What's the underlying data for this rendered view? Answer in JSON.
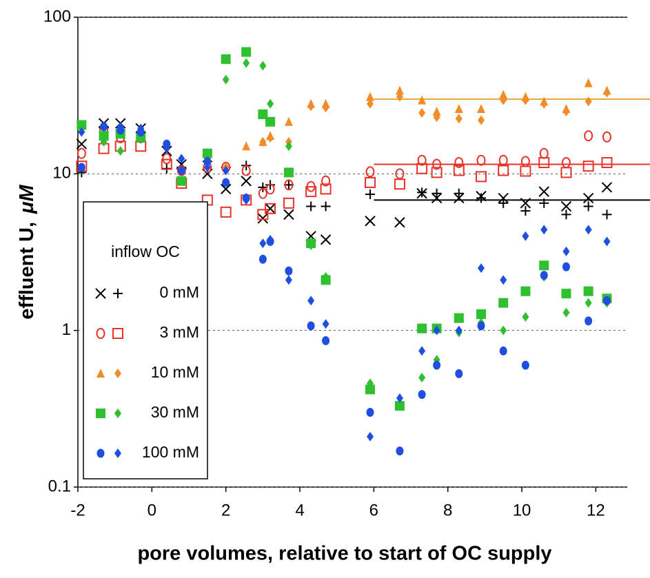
{
  "chart_data": {
    "type": "scatter",
    "xlabel": "pore volumes, relative to start of OC supply",
    "ylabel": "effluent U,",
    "ylabel_unit": "μM",
    "xlim": [
      -2,
      12.85
    ],
    "xticks": [
      -2,
      0,
      2,
      4,
      6,
      8,
      10,
      12
    ],
    "ylim": [
      0.1,
      100
    ],
    "yticks": [
      0.1,
      1,
      10,
      100
    ],
    "log_y": true,
    "grid": true,
    "legend": {
      "title": "inflow OC",
      "corner": "lower-left",
      "entries": [
        {
          "label": "0 mM",
          "series": [
            0,
            1
          ]
        },
        {
          "label": "3 mM",
          "series": [
            2,
            3
          ]
        },
        {
          "label": "10 mM",
          "series": [
            4,
            5
          ]
        },
        {
          "label": "30 mM",
          "series": [
            6,
            7
          ]
        },
        {
          "label": "100 mM",
          "series": [
            8,
            9
          ]
        }
      ]
    },
    "reference_lines": [
      {
        "value": 30,
        "x_start": 6,
        "color": "#e8a33c"
      },
      {
        "value": 11.5,
        "x_start": 6,
        "color": "#e8322a"
      },
      {
        "value": 6.8,
        "x_start": 6,
        "color": "#000000"
      }
    ],
    "series": [
      {
        "marker": "x",
        "color": "#000000",
        "x": [
          -1.9,
          -1.3,
          -0.85,
          -0.3,
          0.4,
          0.8,
          1.5,
          2.0,
          2.55,
          3.0,
          3.2,
          3.7,
          4.3,
          4.7,
          5.9,
          6.7,
          7.3,
          7.7,
          8.3,
          8.9,
          9.5,
          10.1,
          10.6,
          11.2,
          11.8,
          12.3
        ],
        "values": [
          15.5,
          21,
          21,
          19.5,
          14,
          11.5,
          10,
          8,
          9,
          5.2,
          6,
          5.5,
          4,
          3.8,
          5,
          4.9,
          7.5,
          7,
          7,
          7.2,
          7,
          6.5,
          7.7,
          6.2,
          7,
          8.2
        ]
      },
      {
        "marker": "plus",
        "color": "#000000",
        "x": [
          -1.9,
          -1.3,
          -0.85,
          -0.3,
          0.4,
          0.8,
          1.5,
          2.0,
          2.55,
          3.0,
          3.2,
          3.7,
          4.3,
          4.7,
          5.9,
          7.3,
          7.7,
          8.3,
          8.9,
          9.5,
          10.1,
          10.6,
          11.2,
          11.8,
          12.3
        ],
        "values": [
          10.2,
          20,
          19,
          18.5,
          10.8,
          11,
          12,
          11,
          11.3,
          8.2,
          8.5,
          8.5,
          6.2,
          6.2,
          7.4,
          7.6,
          7.5,
          7.5,
          7,
          6.5,
          5.8,
          6.5,
          5.5,
          6.2,
          5.5
        ]
      },
      {
        "marker": "circle-open",
        "color": "#e8322a",
        "x": [
          -1.9,
          -1.3,
          -0.85,
          -0.3,
          0.4,
          0.8,
          1.5,
          2.0,
          2.55,
          3.0,
          3.2,
          3.7,
          4.3,
          4.7,
          5.9,
          6.7,
          7.3,
          7.7,
          8.3,
          8.9,
          9.5,
          10.1,
          10.6,
          11.2,
          11.8,
          12.3
        ],
        "values": [
          13.5,
          19,
          17,
          17,
          12.5,
          10.5,
          11,
          11,
          10.5,
          7.5,
          8,
          8.5,
          8.3,
          9,
          10.3,
          10,
          12.2,
          11.5,
          11.8,
          12.2,
          12.2,
          12,
          13.5,
          11.8,
          17.5,
          17.2
        ]
      },
      {
        "marker": "square-open",
        "color": "#e8322a",
        "x": [
          -1.9,
          -1.3,
          -0.85,
          -0.3,
          0.4,
          0.8,
          1.5,
          2.0,
          2.55,
          3.0,
          3.2,
          3.7,
          4.3,
          4.7,
          5.9,
          6.7,
          7.3,
          7.7,
          8.3,
          8.9,
          9.5,
          10.1,
          10.6,
          11.2,
          11.8,
          12.3
        ],
        "values": [
          11.2,
          14.5,
          15,
          15,
          11.5,
          8.7,
          6.8,
          5.7,
          6.8,
          5.5,
          6,
          6.5,
          7.7,
          8,
          8.8,
          8.6,
          10.8,
          10.2,
          10.5,
          9.6,
          10.5,
          10.4,
          11.8,
          10.2,
          11.2,
          11.8
        ]
      },
      {
        "marker": "triangle",
        "color": "#f28c28",
        "x": [
          2.55,
          3.0,
          3.2,
          3.7,
          4.3,
          4.7,
          5.9,
          6.7,
          7.3,
          7.7,
          8.3,
          8.9,
          9.5,
          10.1,
          10.6,
          11.2,
          11.8,
          12.3
        ],
        "values": [
          15,
          16,
          17.5,
          21.5,
          28,
          28,
          31,
          34,
          29.5,
          25,
          26,
          26,
          32,
          31,
          29,
          26,
          38,
          34
        ]
      },
      {
        "marker": "diamond",
        "color": "#f28c28",
        "x": [
          2.0,
          3.0,
          3.2,
          3.7,
          4.3,
          4.7,
          5.9,
          6.7,
          7.3,
          7.7,
          8.3,
          8.9,
          9.5,
          10.1,
          10.6,
          11.2,
          11.8,
          12.3
        ],
        "values": [
          11,
          16,
          17,
          16,
          27,
          26.5,
          28,
          31,
          24.5,
          23,
          22.5,
          22,
          29.5,
          29.5,
          28,
          25,
          29,
          33
        ]
      },
      {
        "marker": "square",
        "color": "#2fbf2f",
        "x": [
          -1.9,
          -1.3,
          -0.85,
          -0.3,
          0.8,
          1.5,
          2.0,
          2.55,
          3.0,
          3.2,
          3.7,
          4.3,
          4.7,
          5.9,
          6.7,
          7.3,
          7.7,
          8.3,
          8.9,
          9.5,
          10.1,
          10.6,
          11.2,
          11.8,
          12.3
        ],
        "values": [
          20.5,
          17.5,
          18,
          17,
          9,
          13.5,
          54,
          60,
          24,
          21.5,
          10.2,
          3.6,
          2.1,
          0.42,
          0.33,
          1.03,
          1.03,
          1.2,
          1.27,
          1.5,
          1.78,
          2.6,
          1.72,
          1.78,
          1.6
        ]
      },
      {
        "marker": "diamond",
        "color": "#2fbf2f",
        "x": [
          -1.3,
          -0.85,
          -0.3,
          0.8,
          1.5,
          2.0,
          2.55,
          3.0,
          3.2,
          3.7,
          4.3,
          4.7,
          5.9,
          7.3,
          7.7,
          8.3,
          8.9,
          9.5,
          10.1,
          10.6,
          11.2,
          11.8,
          12.3
        ],
        "values": [
          16,
          14,
          19,
          9,
          13,
          40,
          51,
          49,
          28,
          15,
          3.5,
          2.2,
          0.46,
          0.5,
          0.65,
          0.97,
          1.12,
          1,
          1.22,
          2.2,
          1.3,
          1.5,
          1.5
        ]
      },
      {
        "marker": "circle",
        "color": "#1f4fe0",
        "x": [
          -1.9,
          -1.3,
          -0.85,
          -0.3,
          0.4,
          0.8,
          1.5,
          2.0,
          2.55,
          3.0,
          3.2,
          3.7,
          4.3,
          4.7,
          5.9,
          6.7,
          7.3,
          7.7,
          8.3,
          8.9,
          9.5,
          10.1,
          10.6,
          11.2,
          11.8,
          12.3
        ],
        "values": [
          11,
          20,
          19,
          18.5,
          15.5,
          10.5,
          12,
          8.8,
          7,
          2.85,
          3.7,
          2.4,
          1.07,
          0.86,
          0.3,
          0.17,
          0.39,
          0.6,
          0.53,
          1.07,
          0.74,
          0.6,
          2.25,
          2.55,
          1.15,
          1.55
        ]
      },
      {
        "marker": "diamond",
        "color": "#1f4fe0",
        "x": [
          -1.9,
          -1.3,
          -0.85,
          -0.3,
          0.4,
          0.8,
          1.5,
          2.0,
          2.55,
          3.0,
          3.2,
          3.7,
          4.3,
          4.7,
          5.9,
          6.7,
          7.3,
          7.7,
          8.3,
          8.9,
          9.5,
          10.1,
          10.6,
          11.2,
          11.8,
          12.3
        ],
        "values": [
          18.5,
          20,
          20,
          19.5,
          14.5,
          12.5,
          11,
          10.5,
          6.8,
          3.6,
          3.8,
          2.1,
          1.55,
          1.1,
          0.21,
          0.37,
          0.74,
          1.0,
          1.0,
          2.5,
          2.1,
          4,
          4.4,
          3.2,
          4.4,
          3.7
        ]
      }
    ]
  }
}
